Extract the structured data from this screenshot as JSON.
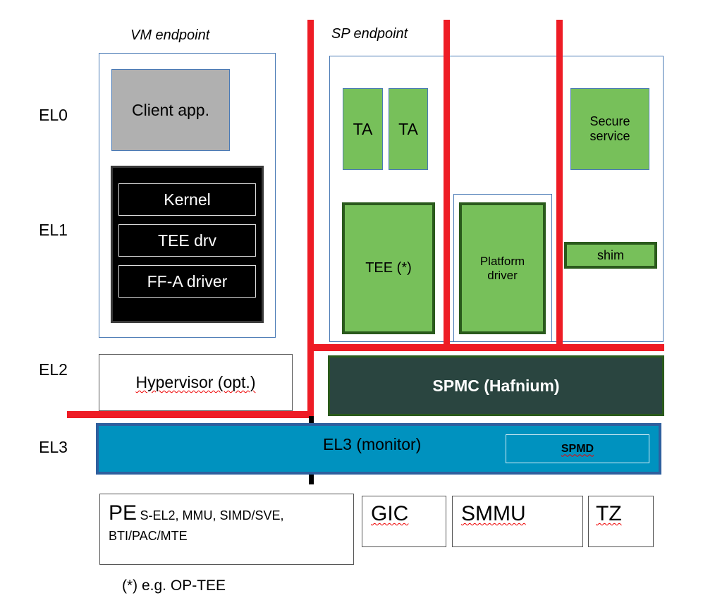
{
  "exception_levels": [
    "EL0",
    "EL1",
    "EL2",
    "EL3"
  ],
  "vm_endpoint": {
    "title": "VM endpoint",
    "client_app": "Client app.",
    "kernel": "Kernel",
    "tee_drv": "TEE drv",
    "ffa_driver": "FF-A driver"
  },
  "sp_endpoint": {
    "title": "SP endpoint",
    "ta1": "TA",
    "ta2": "TA",
    "tee": "TEE (*)",
    "platform_driver": "Platform driver",
    "secure_service": "Secure service",
    "shim": "shim"
  },
  "hypervisor": "Hypervisor (opt.)",
  "spmc": "SPMC (Hafnium)",
  "el3_monitor": "EL3 (monitor)",
  "spmd": "SPMD",
  "hardware": {
    "pe": "PE",
    "pe_features_line1": "S-EL2, MMU, SIMD/SVE,",
    "pe_features_line2": "BTI/PAC/MTE",
    "gic": "GIC",
    "smmu": "SMMU",
    "tz": "TZ"
  },
  "footnote": "(*) e.g. OP-TEE",
  "colors": {
    "partition_line": "#ee1c25",
    "secure_green": "#77c05a",
    "spmc_fill": "#2a4540",
    "el3_fill": "#0092bf"
  }
}
